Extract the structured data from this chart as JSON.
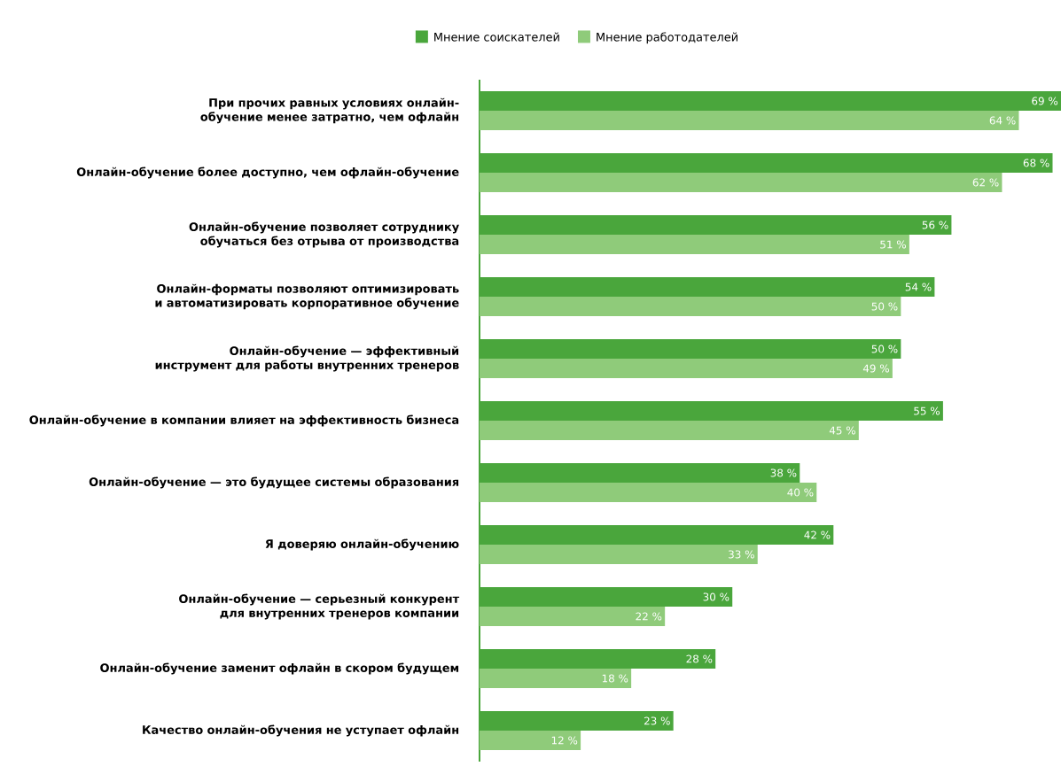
{
  "chart_data": {
    "type": "bar",
    "orientation": "horizontal",
    "legend": "top",
    "categories": [
      "При прочих равных условиях онлайн-обучение менее затратно, чем офлайн",
      "Онлайн-обучение более доступно, чем офлайн-обучение",
      "Онлайн-обучение позволяет сотруднику обучаться без отрыва от производства",
      "Онлайн-форматы позволяют оптимизировать и автоматизировать корпоративное обучение",
      "Онлайн-обучение — эффективный инструмент для работы внутренних тренеров",
      "Онлайн-обучение в компании влияет на эффективность бизнеса",
      "Онлайн-обучение — это будущее системы образования",
      "Я доверяю онлайн-обучению",
      "Онлайн-обучение — серьезный конкурент для внутренних тренеров компании",
      "Онлайн-обучение заменит офлайн в скором будущем",
      "Качество онлайн-обучения не уступает офлайн"
    ],
    "series": [
      {
        "name": "Мнение соискателей",
        "color": "#4aa63c",
        "values": [
          69,
          68,
          56,
          54,
          50,
          55,
          38,
          42,
          30,
          28,
          23
        ],
        "value_labels": [
          "69 %",
          "68 %",
          "56 %",
          "54 %",
          "50 %",
          "55 %",
          "38 %",
          "42 %",
          "30 %",
          "28 %",
          "23 %"
        ]
      },
      {
        "name": "Мнение работодателей",
        "color": "#8fcb7a",
        "values": [
          64,
          62,
          51,
          50,
          49,
          45,
          40,
          33,
          22,
          18,
          12
        ],
        "value_labels": [
          "64 %",
          "62 %",
          "51 %",
          "50 %",
          "49 %",
          "45 %",
          "40 %",
          "33 %",
          "22 %",
          "18 %",
          "12 %"
        ]
      }
    ]
  }
}
